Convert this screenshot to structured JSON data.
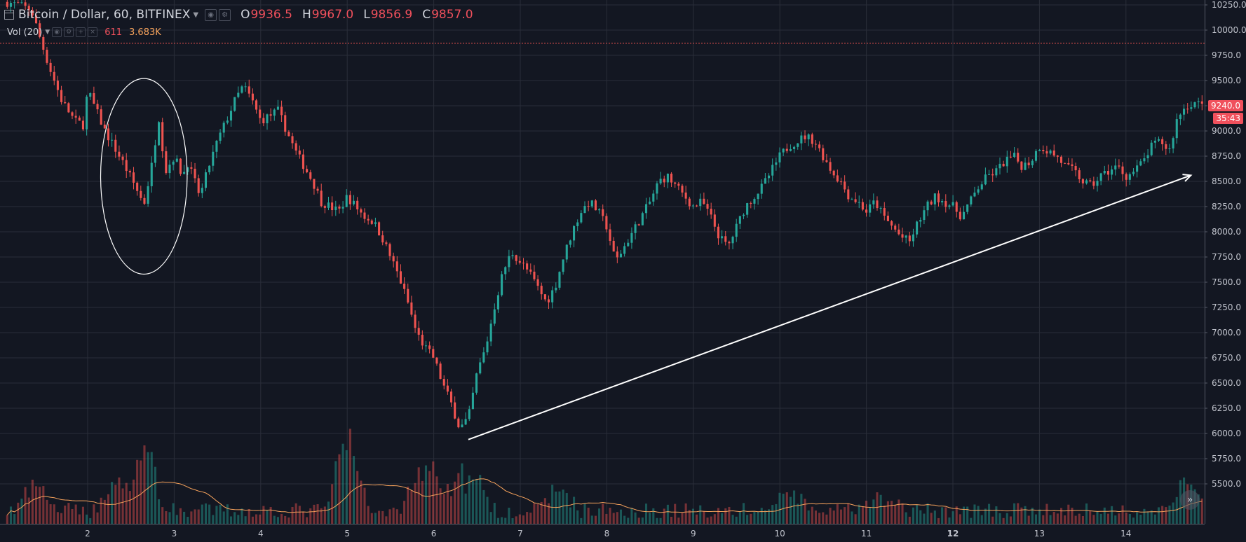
{
  "header": {
    "symbol": "Bitcoin / Dollar, 60, BITFINEX",
    "open_label": "O",
    "open": "9936.5",
    "high_label": "H",
    "high": "9967.0",
    "low_label": "L",
    "low": "9856.9",
    "close_label": "C",
    "close": "9857.0"
  },
  "volume_indicator": {
    "label": "Vol (20)",
    "value": "611",
    "ma_value": "3.683K"
  },
  "last_price": {
    "price": "9240.0",
    "countdown": "35:43"
  },
  "colors": {
    "background": "#131722",
    "grid": "#2a2e39",
    "up": "#26a69a",
    "down": "#ef5350",
    "volume_ma": "#f7a35c",
    "annotation": "#ffffff",
    "price_line": "#ef5350"
  },
  "chart_data": {
    "type": "candlestick",
    "title": "Bitcoin / Dollar, 60, BITFINEX",
    "y_ticks": [
      10250,
      10000,
      9750,
      9500,
      9250,
      9000,
      8750,
      8500,
      8250,
      8000,
      7750,
      7500,
      7250,
      7000,
      6750,
      6500,
      6250,
      6000,
      5750,
      5500
    ],
    "y_tick_labels": [
      "10250.0",
      "10000.0",
      "9750.0",
      "9500.0",
      "9250.0",
      "9000.0",
      "8750.0",
      "8500.0",
      "8250.0",
      "8000.0",
      "7750.0",
      "7500.0",
      "7250.0",
      "7000.0",
      "6750.0",
      "6500.0",
      "6250.0",
      "6000.0",
      "5750.0",
      "5500.0"
    ],
    "ylim": [
      5450,
      10280
    ],
    "x_ticks": [
      2,
      3,
      4,
      5,
      6,
      7,
      8,
      9,
      10,
      11,
      12,
      13,
      14
    ],
    "x_tick_labels": [
      "2",
      "3",
      "4",
      "5",
      "6",
      "7",
      "8",
      "9",
      "10",
      "11",
      "12",
      "13",
      "14"
    ],
    "xlim": [
      1.05,
      14.9
    ],
    "price_path": [
      [
        1.05,
        10280
      ],
      [
        1.2,
        10250
      ],
      [
        1.35,
        10200
      ],
      [
        1.45,
        9920
      ],
      [
        1.55,
        9650
      ],
      [
        1.7,
        9300
      ],
      [
        1.85,
        9100
      ],
      [
        1.95,
        9060
      ],
      [
        2.0,
        9400
      ],
      [
        2.1,
        9200
      ],
      [
        2.2,
        9000
      ],
      [
        2.3,
        8850
      ],
      [
        2.4,
        8700
      ],
      [
        2.55,
        8450
      ],
      [
        2.65,
        8270
      ],
      [
        2.75,
        8700
      ],
      [
        2.82,
        9150
      ],
      [
        2.9,
        8600
      ],
      [
        3.0,
        8750
      ],
      [
        3.1,
        8550
      ],
      [
        3.15,
        8700
      ],
      [
        3.3,
        8350
      ],
      [
        3.4,
        8650
      ],
      [
        3.5,
        8900
      ],
      [
        3.6,
        9100
      ],
      [
        3.7,
        9300
      ],
      [
        3.8,
        9450
      ],
      [
        3.9,
        9300
      ],
      [
        4.0,
        9100
      ],
      [
        4.1,
        9150
      ],
      [
        4.2,
        9200
      ],
      [
        4.3,
        9000
      ],
      [
        4.4,
        8800
      ],
      [
        4.5,
        8650
      ],
      [
        4.6,
        8500
      ],
      [
        4.7,
        8300
      ],
      [
        4.8,
        8250
      ],
      [
        4.9,
        8200
      ],
      [
        5.0,
        8350
      ],
      [
        5.1,
        8250
      ],
      [
        5.2,
        8150
      ],
      [
        5.3,
        8100
      ],
      [
        5.4,
        7950
      ],
      [
        5.5,
        7750
      ],
      [
        5.6,
        7550
      ],
      [
        5.7,
        7300
      ],
      [
        5.8,
        7000
      ],
      [
        5.9,
        6850
      ],
      [
        6.0,
        6750
      ],
      [
        6.1,
        6500
      ],
      [
        6.2,
        6300
      ],
      [
        6.3,
        6050
      ],
      [
        6.4,
        6150
      ],
      [
        6.5,
        6600
      ],
      [
        6.6,
        6850
      ],
      [
        6.7,
        7250
      ],
      [
        6.8,
        7600
      ],
      [
        6.9,
        7800
      ],
      [
        7.0,
        7700
      ],
      [
        7.1,
        7600
      ],
      [
        7.2,
        7450
      ],
      [
        7.3,
        7300
      ],
      [
        7.4,
        7450
      ],
      [
        7.5,
        7750
      ],
      [
        7.6,
        8000
      ],
      [
        7.7,
        8200
      ],
      [
        7.8,
        8300
      ],
      [
        7.9,
        8200
      ],
      [
        8.0,
        8050
      ],
      [
        8.1,
        7700
      ],
      [
        8.2,
        7850
      ],
      [
        8.3,
        8000
      ],
      [
        8.4,
        8150
      ],
      [
        8.5,
        8300
      ],
      [
        8.6,
        8500
      ],
      [
        8.7,
        8550
      ],
      [
        8.8,
        8450
      ],
      [
        8.9,
        8350
      ],
      [
        9.0,
        8250
      ],
      [
        9.1,
        8300
      ],
      [
        9.2,
        8150
      ],
      [
        9.3,
        7950
      ],
      [
        9.4,
        7850
      ],
      [
        9.5,
        8050
      ],
      [
        9.6,
        8250
      ],
      [
        9.7,
        8350
      ],
      [
        9.8,
        8450
      ],
      [
        9.9,
        8600
      ],
      [
        10.0,
        8750
      ],
      [
        10.1,
        8850
      ],
      [
        10.2,
        8900
      ],
      [
        10.3,
        8950
      ],
      [
        10.4,
        8900
      ],
      [
        10.5,
        8750
      ],
      [
        10.6,
        8600
      ],
      [
        10.7,
        8500
      ],
      [
        10.8,
        8350
      ],
      [
        10.9,
        8300
      ],
      [
        11.0,
        8200
      ],
      [
        11.1,
        8300
      ],
      [
        11.2,
        8150
      ],
      [
        11.3,
        8050
      ],
      [
        11.4,
        7950
      ],
      [
        11.5,
        7900
      ],
      [
        11.6,
        8100
      ],
      [
        11.7,
        8250
      ],
      [
        11.8,
        8350
      ],
      [
        11.9,
        8300
      ],
      [
        12.0,
        8250
      ],
      [
        12.1,
        8150
      ],
      [
        12.2,
        8300
      ],
      [
        12.3,
        8450
      ],
      [
        12.4,
        8550
      ],
      [
        12.5,
        8600
      ],
      [
        12.6,
        8700
      ],
      [
        12.7,
        8750
      ],
      [
        12.8,
        8650
      ],
      [
        12.9,
        8700
      ],
      [
        13.0,
        8850
      ],
      [
        13.1,
        8800
      ],
      [
        13.2,
        8750
      ],
      [
        13.3,
        8650
      ],
      [
        13.4,
        8600
      ],
      [
        13.5,
        8500
      ],
      [
        13.6,
        8450
      ],
      [
        13.7,
        8550
      ],
      [
        13.8,
        8600
      ],
      [
        13.9,
        8650
      ],
      [
        14.0,
        8550
      ],
      [
        14.1,
        8600
      ],
      [
        14.2,
        8700
      ],
      [
        14.3,
        8850
      ],
      [
        14.4,
        8900
      ],
      [
        14.5,
        8800
      ],
      [
        14.6,
        9150
      ],
      [
        14.7,
        9250
      ],
      [
        14.8,
        9280
      ],
      [
        14.9,
        9240
      ]
    ],
    "volume_spikes": [
      [
        1.4,
        0.35
      ],
      [
        2.35,
        0.45
      ],
      [
        2.65,
        0.9
      ],
      [
        5.0,
        1.0
      ],
      [
        5.85,
        0.55
      ],
      [
        5.95,
        0.65
      ],
      [
        6.3,
        0.5
      ],
      [
        6.45,
        0.45
      ],
      [
        7.45,
        0.3
      ],
      [
        10.1,
        0.25
      ],
      [
        11.2,
        0.2
      ],
      [
        14.7,
        0.4
      ]
    ],
    "annotations": [
      {
        "type": "ellipse",
        "center": [
          2.65,
          8550
        ],
        "rx_days": 0.5,
        "ry_price": 970
      },
      {
        "type": "arrow",
        "from": [
          6.4,
          5940
        ],
        "to": [
          14.75,
          8560
        ]
      }
    ],
    "reference_line": 9870
  }
}
